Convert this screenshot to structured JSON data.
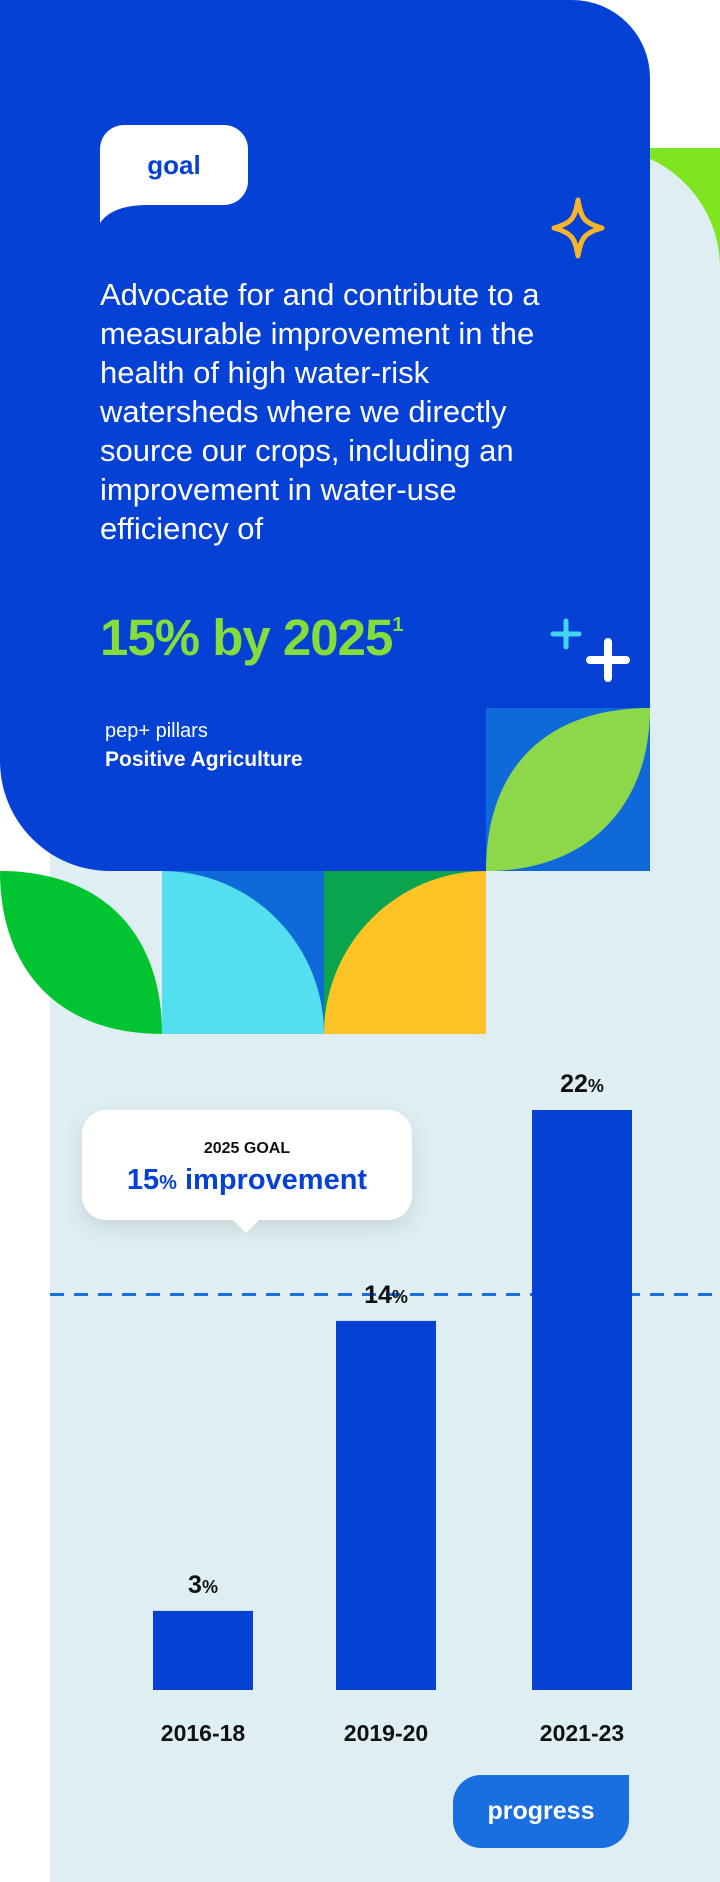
{
  "goal": {
    "tag": "goal",
    "text": "Advocate for and contribute to a measurable improvement in the health of high water-risk watersheds where we directly source our crops, including an improvement in water-use efficiency of",
    "headline": "15% by 2025",
    "footnote": "1",
    "pillars_caption": "pep+ pillars",
    "pillar": "Positive Agriculture"
  },
  "callout": {
    "caption": "2025 GOAL",
    "big": "15",
    "pct": "%",
    "rest": " improvement"
  },
  "progress_label": "progress",
  "icons": [
    "sparkle-icon",
    "plus-icon"
  ],
  "colors": {
    "blue": "#0641d5",
    "green": "#84dd3b",
    "bar": "#0641d5",
    "panel": "#dfeef2",
    "goal_line": "#1a6fe0"
  },
  "chart_data": {
    "type": "bar",
    "categories": [
      "2016-18",
      "2019-20",
      "2021-23"
    ],
    "values": [
      3,
      14,
      22
    ],
    "value_suffix": "%",
    "goal_value": 15,
    "ylim": [
      0,
      22
    ],
    "grid": false
  }
}
